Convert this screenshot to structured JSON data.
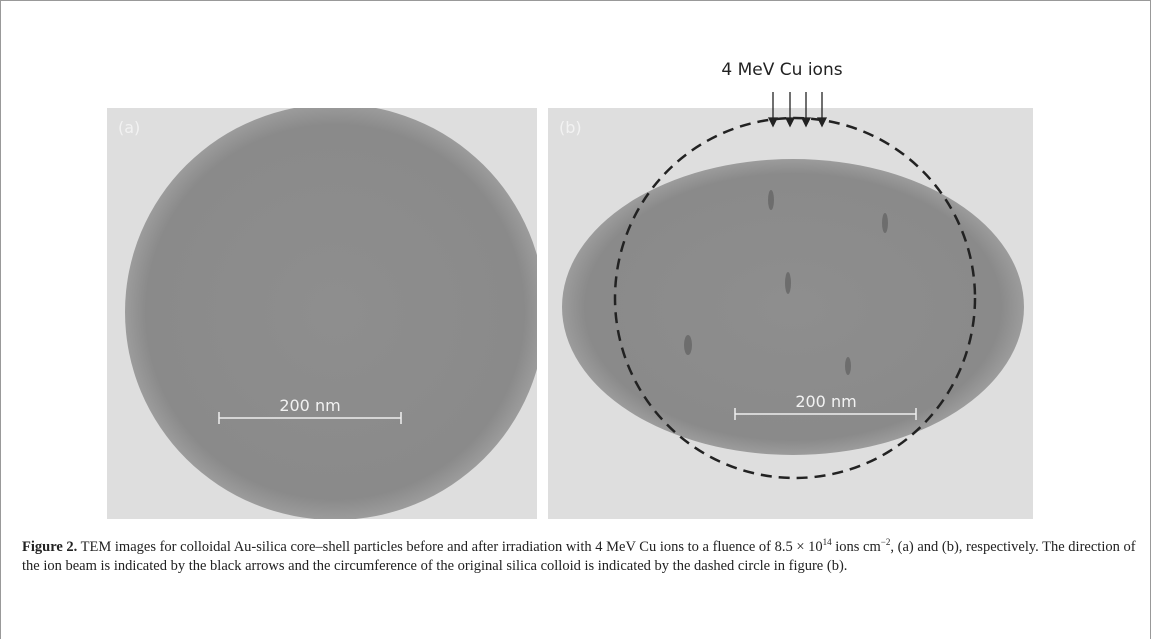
{
  "figure": {
    "beam_label": "4 MeV Cu ions",
    "panels": [
      {
        "label": "(a)",
        "scale_bar": "200 nm"
      },
      {
        "label": "(b)",
        "scale_bar": "200 nm"
      }
    ]
  },
  "caption": {
    "label": "Figure 2.",
    "text_before": " TEM images for colloidal Au-silica core–shell particles before and after irradiation with 4 MeV Cu ions to a fluence of 8.5 × 10",
    "exponent_1": "14",
    "text_middle": " ions cm",
    "exponent_2": "−2",
    "text_after": ", (a) and (b), respectively. The direction of the ion beam is indicated by the black arrows and the circumference of the original silica colloid is indicated by the dashed circle in figure (b)."
  }
}
